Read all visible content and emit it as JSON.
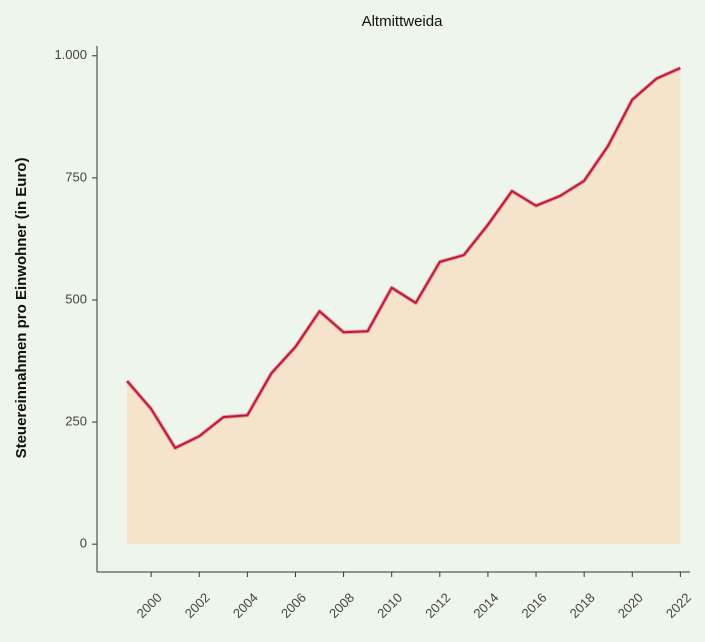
{
  "chart_data": {
    "type": "area-line",
    "title": "Altmittweida",
    "y_label": "Steuereinnahmen pro Einwohner (in Euro)",
    "x": [
      1999,
      2000,
      2001,
      2002,
      2003,
      2004,
      2005,
      2006,
      2007,
      2008,
      2009,
      2010,
      2011,
      2012,
      2013,
      2014,
      2015,
      2016,
      2017,
      2018,
      2019,
      2020,
      2021,
      2022
    ],
    "values": [
      334,
      277,
      197,
      221,
      260,
      264,
      350,
      404,
      477,
      434,
      436,
      525,
      494,
      578,
      592,
      654,
      723,
      693,
      713,
      744,
      816,
      910,
      953,
      975
    ],
    "color": "#c0163a",
    "fill_color": "#f5e3cb",
    "xlim": [
      1997.75,
      2022.4
    ],
    "xticks": [
      2000,
      2002,
      2004,
      2006,
      2008,
      2010,
      2012,
      2014,
      2016,
      2018,
      2020,
      2022
    ],
    "ylim": [
      -57,
      1020
    ],
    "yticks": [
      0,
      250,
      500,
      750,
      {
        "value": 1000,
        "label": "1.000"
      }
    ]
  }
}
